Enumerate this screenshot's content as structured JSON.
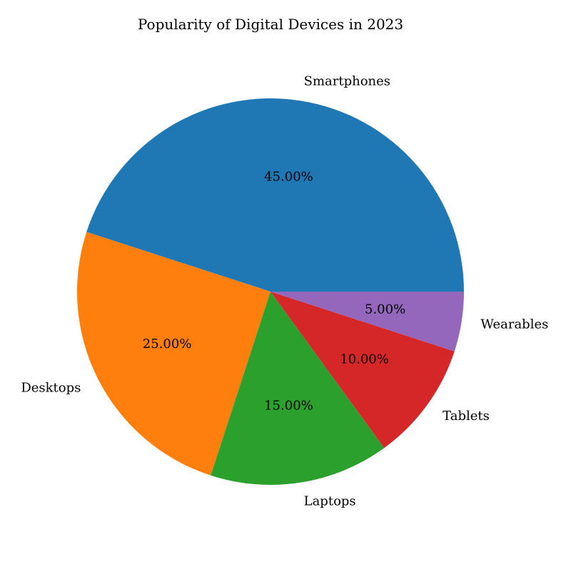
{
  "chart_data": {
    "type": "pie",
    "title": "Popularity of Digital Devices in 2023",
    "categories": [
      "Smartphones",
      "Desktops",
      "Laptops",
      "Tablets",
      "Wearables"
    ],
    "values": [
      45,
      25,
      15,
      10,
      5
    ],
    "percent_labels": [
      "45.00%",
      "25.00%",
      "15.00%",
      "10.00%",
      "5.00%"
    ],
    "colors": [
      "#1f77b4",
      "#ff7f0e",
      "#2ca02c",
      "#d62728",
      "#9467bd"
    ],
    "start_angle_deg": 0,
    "direction": "counterclockwise"
  }
}
